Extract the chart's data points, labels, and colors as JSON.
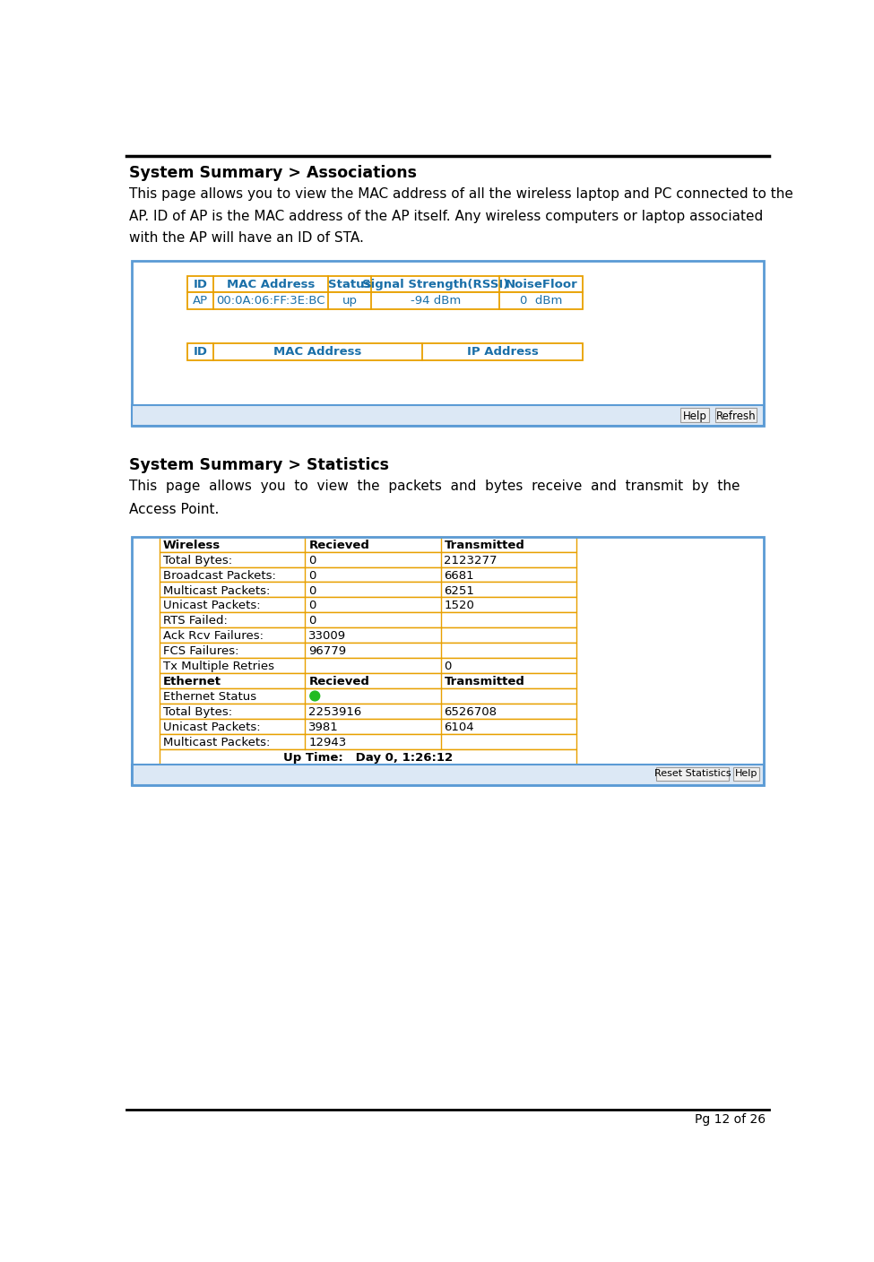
{
  "page_bg": "#ffffff",
  "top_line_color": "#000000",
  "section1_title": "System Summary > Associations",
  "section1_body_lines": [
    "This page allows you to view the MAC address of all the wireless laptop and PC connected to the",
    "AP. ID of AP is the MAC address of the AP itself. Any wireless computers or laptop associated",
    "with the AP will have an ID of STA."
  ],
  "assoc_table": {
    "outer_border_color": "#5b9bd5",
    "inner_border_color": "#e8a000",
    "header1_color": "#1a6fa8",
    "header1_cols": [
      "ID",
      "MAC Address",
      "Status",
      "Signal Strength(RSSI)",
      "NoiseFloor"
    ],
    "row1": [
      "AP",
      "00:0A:06:FF:3E:BC",
      "up",
      "-94 dBm",
      "0  dBm"
    ],
    "header2_cols": [
      "ID",
      "MAC Address",
      "IP Address"
    ],
    "buttons": [
      "Help",
      "Refresh"
    ]
  },
  "section2_title": "System Summary > Statistics",
  "section2_body_lines": [
    "This  page  allows  you  to  view  the  packets  and  bytes  receive  and  transmit  by  the",
    "Access Point."
  ],
  "stats_table": {
    "outer_border_color": "#5b9bd5",
    "inner_border_color": "#e8a000",
    "wireless_header": [
      "Wireless",
      "Recieved",
      "Transmitted"
    ],
    "wireless_rows": [
      [
        "Total Bytes:",
        "0",
        "2123277"
      ],
      [
        "Broadcast Packets:",
        "0",
        "6681"
      ],
      [
        "Multicast Packets:",
        "0",
        "6251"
      ],
      [
        "Unicast Packets:",
        "0",
        "1520"
      ],
      [
        "RTS Failed:",
        "0",
        ""
      ],
      [
        "Ack Rcv Failures:",
        "33009",
        ""
      ],
      [
        "FCS Failures:",
        "96779",
        ""
      ],
      [
        "Tx Multiple Retries",
        "",
        "0"
      ]
    ],
    "ethernet_header": [
      "Ethernet",
      "Recieved",
      "Transmitted"
    ],
    "ethernet_rows": [
      [
        "Ethernet Status",
        "green_dot",
        ""
      ],
      [
        "Total Bytes:",
        "2253916",
        "6526708"
      ],
      [
        "Unicast Packets:",
        "3981",
        "6104"
      ],
      [
        "Multicast Packets:",
        "12943",
        ""
      ]
    ],
    "uptime_label": "Up Time:",
    "uptime_value": "Day 0, 1:26:12",
    "buttons": [
      "Reset Statistics",
      "Help"
    ]
  },
  "footer_text": "Pg 12 of 26"
}
